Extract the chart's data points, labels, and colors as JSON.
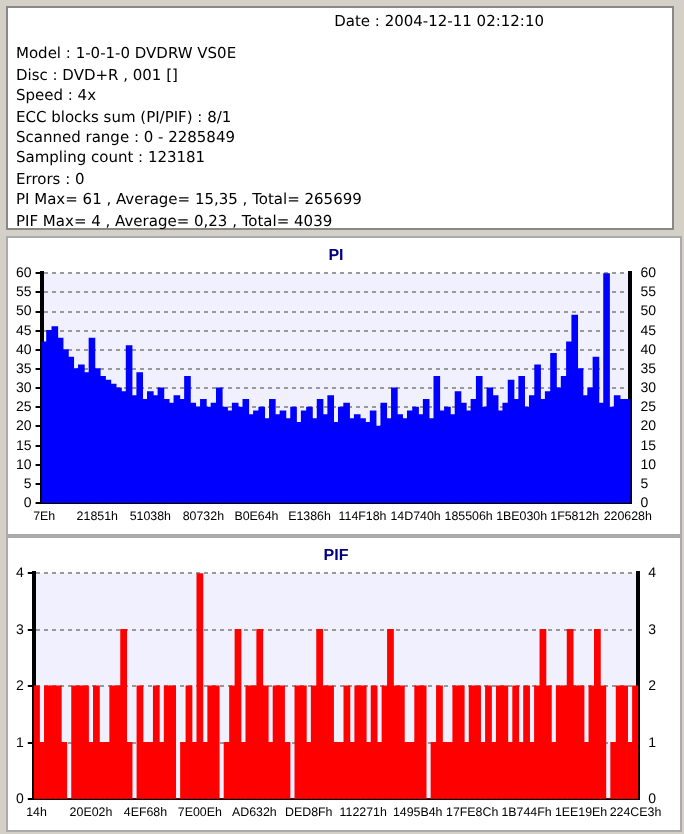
{
  "chart_data": [
    {
      "type": "other",
      "annotations": [
        "Date : 2004-12-11 02:12:10",
        "Model : 1-0-1-0 DVDRW VS0E",
        "Disc : DVD+R , 001 []",
        "Speed : 4x",
        "ECC blocks sum (PI/PIF) : 8/1",
        "Scanned range : 0 - 2285849",
        "Sampling count : 123181",
        "Errors : 0",
        "PI Max= 61 , Average= 15,35 , Total= 265699",
        "PIF Max= 4 , Average= 0,23 , Total= 4039"
      ]
    },
    {
      "type": "bar",
      "title": "PI",
      "color": "#0000ff",
      "grid": "y",
      "legend": false,
      "categories": [
        "7Eh",
        null,
        null,
        null,
        null,
        null,
        null,
        null,
        null,
        null,
        "21851h",
        null,
        null,
        null,
        null,
        null,
        null,
        null,
        null,
        null,
        "51038h",
        null,
        null,
        null,
        null,
        null,
        null,
        null,
        null,
        null,
        "80732h",
        null,
        null,
        null,
        null,
        null,
        null,
        null,
        null,
        null,
        "B0E64h",
        null,
        null,
        null,
        null,
        null,
        null,
        null,
        null,
        null,
        "E1386h",
        null,
        null,
        null,
        null,
        null,
        null,
        null,
        null,
        null,
        "114F18h",
        null,
        null,
        null,
        null,
        null,
        null,
        null,
        null,
        null,
        "14D740h",
        null,
        null,
        null,
        null,
        null,
        null,
        null,
        null,
        null,
        "185506h",
        null,
        null,
        null,
        null,
        null,
        null,
        null,
        null,
        null,
        "1BE030h",
        null,
        null,
        null,
        null,
        null,
        null,
        null,
        null,
        null,
        "1F5812h",
        null,
        null,
        null,
        null,
        null,
        null,
        null,
        null,
        null,
        "220628h"
      ],
      "values": [
        42,
        45,
        46,
        43,
        40,
        38,
        35,
        36,
        34,
        43,
        35,
        33,
        32,
        31,
        30,
        29,
        41,
        28,
        34,
        27,
        29,
        28,
        30,
        27,
        26,
        28,
        27,
        33,
        26,
        25,
        27,
        25,
        26,
        30,
        25,
        24,
        26,
        25,
        27,
        23,
        24,
        25,
        22,
        27,
        23,
        24,
        22,
        25,
        21,
        24,
        25,
        22,
        27,
        23,
        28,
        21,
        25,
        26,
        22,
        23,
        22,
        21,
        24,
        20,
        26,
        22,
        30,
        23,
        22,
        24,
        25,
        23,
        27,
        22,
        33,
        24,
        25,
        23,
        29,
        26,
        24,
        27,
        33,
        25,
        30,
        28,
        24,
        26,
        32,
        27,
        33,
        25,
        28,
        36,
        27,
        29,
        39,
        30,
        33,
        42,
        49,
        35,
        28,
        30,
        38,
        26,
        60,
        25,
        28,
        27,
        27
      ],
      "ylim": [
        0,
        60
      ],
      "yticks": [
        0,
        5,
        10,
        15,
        20,
        25,
        30,
        35,
        40,
        45,
        50,
        55,
        60
      ],
      "y2lim": [
        0,
        60
      ],
      "y2ticks": [
        0,
        5,
        10,
        15,
        20,
        25,
        30,
        35,
        40,
        45,
        50,
        55,
        60
      ]
    },
    {
      "type": "bar",
      "title": "PIF",
      "color": "#ff0000",
      "grid": "y",
      "legend": false,
      "categories": [
        "14h",
        null,
        null,
        null,
        null,
        null,
        null,
        null,
        null,
        null,
        "20E02h",
        null,
        null,
        null,
        null,
        null,
        null,
        null,
        null,
        null,
        "4EF68h",
        null,
        null,
        null,
        null,
        null,
        null,
        null,
        null,
        null,
        "7E00Eh",
        null,
        null,
        null,
        null,
        null,
        null,
        null,
        null,
        null,
        "AD632h",
        null,
        null,
        null,
        null,
        null,
        null,
        null,
        null,
        null,
        "DED8Fh",
        null,
        null,
        null,
        null,
        null,
        null,
        null,
        null,
        null,
        "112271h",
        null,
        null,
        null,
        null,
        null,
        null,
        null,
        null,
        null,
        "1495B4h",
        null,
        null,
        null,
        null,
        null,
        null,
        null,
        null,
        null,
        "17FE8Ch",
        null,
        null,
        null,
        null,
        null,
        null,
        null,
        null,
        null,
        "1B744Fh",
        null,
        null,
        null,
        null,
        null,
        null,
        null,
        null,
        null,
        "1EE19Eh",
        null,
        null,
        null,
        null,
        null,
        null,
        null,
        null,
        null,
        "224CE3h"
      ],
      "values": [
        2,
        1,
        2,
        2,
        2,
        1,
        0,
        2,
        2,
        2,
        1,
        2,
        1,
        1,
        2,
        2,
        3,
        1,
        0,
        2,
        1,
        1,
        2,
        1,
        2,
        2,
        0,
        1,
        2,
        1,
        4,
        1,
        2,
        2,
        0,
        1,
        2,
        3,
        1,
        2,
        2,
        3,
        2,
        1,
        2,
        2,
        1,
        0,
        2,
        2,
        1,
        2,
        3,
        2,
        2,
        1,
        1,
        2,
        1,
        2,
        2,
        1,
        2,
        1,
        2,
        3,
        2,
        2,
        1,
        1,
        2,
        2,
        0,
        1,
        2,
        1,
        1,
        2,
        2,
        1,
        2,
        2,
        1,
        2,
        1,
        2,
        2,
        1,
        2,
        1,
        2,
        1,
        2,
        3,
        2,
        1,
        2,
        2,
        3,
        2,
        2,
        1,
        2,
        3,
        2,
        0,
        1,
        2,
        2,
        1,
        2
      ],
      "ylim": [
        0,
        4
      ],
      "yticks": [
        0,
        1,
        2,
        3,
        4
      ],
      "y2lim": [
        0,
        4
      ],
      "y2ticks": [
        0,
        1,
        2,
        3,
        4
      ]
    }
  ]
}
